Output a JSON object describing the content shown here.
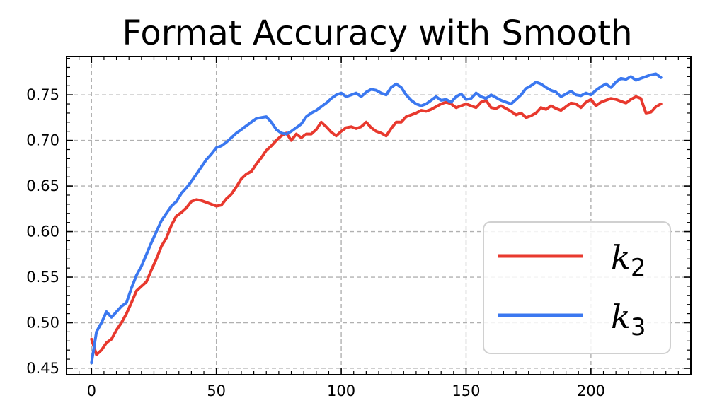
{
  "chart_data": {
    "type": "line",
    "title": "Format Accuracy with Smooth",
    "xlabel": "",
    "ylabel": "",
    "xlim": [
      -10,
      240
    ],
    "ylim": [
      0.443,
      0.792
    ],
    "x_ticks": [
      0,
      50,
      100,
      150,
      200
    ],
    "x_tick_labels": [
      "0",
      "50",
      "100",
      "150",
      "200"
    ],
    "y_ticks": [
      0.45,
      0.5,
      0.55,
      0.6,
      0.65,
      0.7,
      0.75
    ],
    "y_tick_labels": [
      "0.45",
      "0.50",
      "0.55",
      "0.60",
      "0.65",
      "0.70",
      "0.75"
    ],
    "grid": true,
    "legend_position": "lower-right",
    "series": [
      {
        "name_base": "k",
        "name_sub": "2",
        "color": "#e8392e",
        "x": [
          0,
          2,
          4,
          6,
          8,
          10,
          12,
          14,
          16,
          18,
          20,
          22,
          24,
          26,
          28,
          30,
          32,
          34,
          36,
          38,
          40,
          42,
          44,
          46,
          48,
          50,
          52,
          54,
          56,
          58,
          60,
          62,
          64,
          66,
          68,
          70,
          72,
          74,
          76,
          78,
          80,
          82,
          84,
          86,
          88,
          90,
          92,
          94,
          96,
          98,
          100,
          102,
          104,
          106,
          108,
          110,
          112,
          114,
          116,
          118,
          120,
          122,
          124,
          126,
          128,
          130,
          132,
          134,
          136,
          138,
          140,
          142,
          144,
          146,
          148,
          150,
          152,
          154,
          156,
          158,
          160,
          162,
          164,
          166,
          168,
          170,
          172,
          174,
          176,
          178,
          180,
          182,
          184,
          186,
          188,
          190,
          192,
          194,
          196,
          198,
          200,
          202,
          204,
          206,
          208,
          210,
          212,
          214,
          216,
          218,
          220,
          222,
          224,
          226,
          228
        ],
        "values": [
          0.482,
          0.465,
          0.47,
          0.478,
          0.482,
          0.492,
          0.5,
          0.51,
          0.522,
          0.535,
          0.54,
          0.545,
          0.558,
          0.57,
          0.584,
          0.593,
          0.607,
          0.617,
          0.621,
          0.626,
          0.633,
          0.635,
          0.634,
          0.632,
          0.63,
          0.628,
          0.629,
          0.636,
          0.641,
          0.649,
          0.658,
          0.663,
          0.666,
          0.674,
          0.681,
          0.689,
          0.694,
          0.7,
          0.705,
          0.708,
          0.7,
          0.707,
          0.703,
          0.707,
          0.707,
          0.712,
          0.72,
          0.715,
          0.709,
          0.705,
          0.71,
          0.714,
          0.715,
          0.713,
          0.715,
          0.72,
          0.714,
          0.71,
          0.708,
          0.705,
          0.713,
          0.72,
          0.72,
          0.726,
          0.728,
          0.73,
          0.733,
          0.732,
          0.734,
          0.737,
          0.74,
          0.742,
          0.74,
          0.736,
          0.738,
          0.74,
          0.738,
          0.736,
          0.742,
          0.744,
          0.736,
          0.735,
          0.738,
          0.735,
          0.732,
          0.728,
          0.73,
          0.725,
          0.727,
          0.73,
          0.736,
          0.734,
          0.738,
          0.735,
          0.733,
          0.737,
          0.741,
          0.74,
          0.736,
          0.742,
          0.745,
          0.738,
          0.742,
          0.744,
          0.746,
          0.745,
          0.743,
          0.741,
          0.745,
          0.748,
          0.746,
          0.73,
          0.731,
          0.737,
          0.74
        ]
      },
      {
        "name_base": "k",
        "name_sub": "3",
        "color": "#3b78f0",
        "x": [
          0,
          2,
          4,
          6,
          8,
          10,
          12,
          14,
          16,
          18,
          20,
          22,
          24,
          26,
          28,
          30,
          32,
          34,
          36,
          38,
          40,
          42,
          44,
          46,
          48,
          50,
          52,
          54,
          56,
          58,
          60,
          62,
          64,
          66,
          68,
          70,
          72,
          74,
          76,
          78,
          80,
          82,
          84,
          86,
          88,
          90,
          92,
          94,
          96,
          98,
          100,
          102,
          104,
          106,
          108,
          110,
          112,
          114,
          116,
          118,
          120,
          122,
          124,
          126,
          128,
          130,
          132,
          134,
          136,
          138,
          140,
          142,
          144,
          146,
          148,
          150,
          152,
          154,
          156,
          158,
          160,
          162,
          164,
          166,
          168,
          170,
          172,
          174,
          176,
          178,
          180,
          182,
          184,
          186,
          188,
          190,
          192,
          194,
          196,
          198,
          200,
          202,
          204,
          206,
          208,
          210,
          212,
          214,
          216,
          218,
          220,
          222,
          224,
          226,
          228
        ],
        "values": [
          0.456,
          0.49,
          0.5,
          0.512,
          0.506,
          0.512,
          0.518,
          0.522,
          0.538,
          0.552,
          0.562,
          0.575,
          0.588,
          0.6,
          0.612,
          0.62,
          0.628,
          0.633,
          0.642,
          0.648,
          0.655,
          0.663,
          0.671,
          0.679,
          0.685,
          0.692,
          0.694,
          0.698,
          0.703,
          0.708,
          0.712,
          0.716,
          0.72,
          0.724,
          0.725,
          0.726,
          0.72,
          0.712,
          0.708,
          0.707,
          0.71,
          0.714,
          0.718,
          0.726,
          0.73,
          0.733,
          0.737,
          0.741,
          0.746,
          0.75,
          0.752,
          0.748,
          0.75,
          0.752,
          0.748,
          0.753,
          0.756,
          0.755,
          0.752,
          0.75,
          0.758,
          0.762,
          0.758,
          0.75,
          0.744,
          0.74,
          0.738,
          0.74,
          0.744,
          0.748,
          0.744,
          0.745,
          0.742,
          0.748,
          0.751,
          0.745,
          0.746,
          0.752,
          0.748,
          0.746,
          0.75,
          0.747,
          0.744,
          0.742,
          0.74,
          0.745,
          0.75,
          0.757,
          0.76,
          0.764,
          0.762,
          0.758,
          0.755,
          0.753,
          0.748,
          0.751,
          0.754,
          0.75,
          0.749,
          0.752,
          0.75,
          0.755,
          0.759,
          0.762,
          0.758,
          0.764,
          0.768,
          0.767,
          0.77,
          0.766,
          0.768,
          0.77,
          0.772,
          0.773,
          0.769
        ]
      }
    ]
  }
}
